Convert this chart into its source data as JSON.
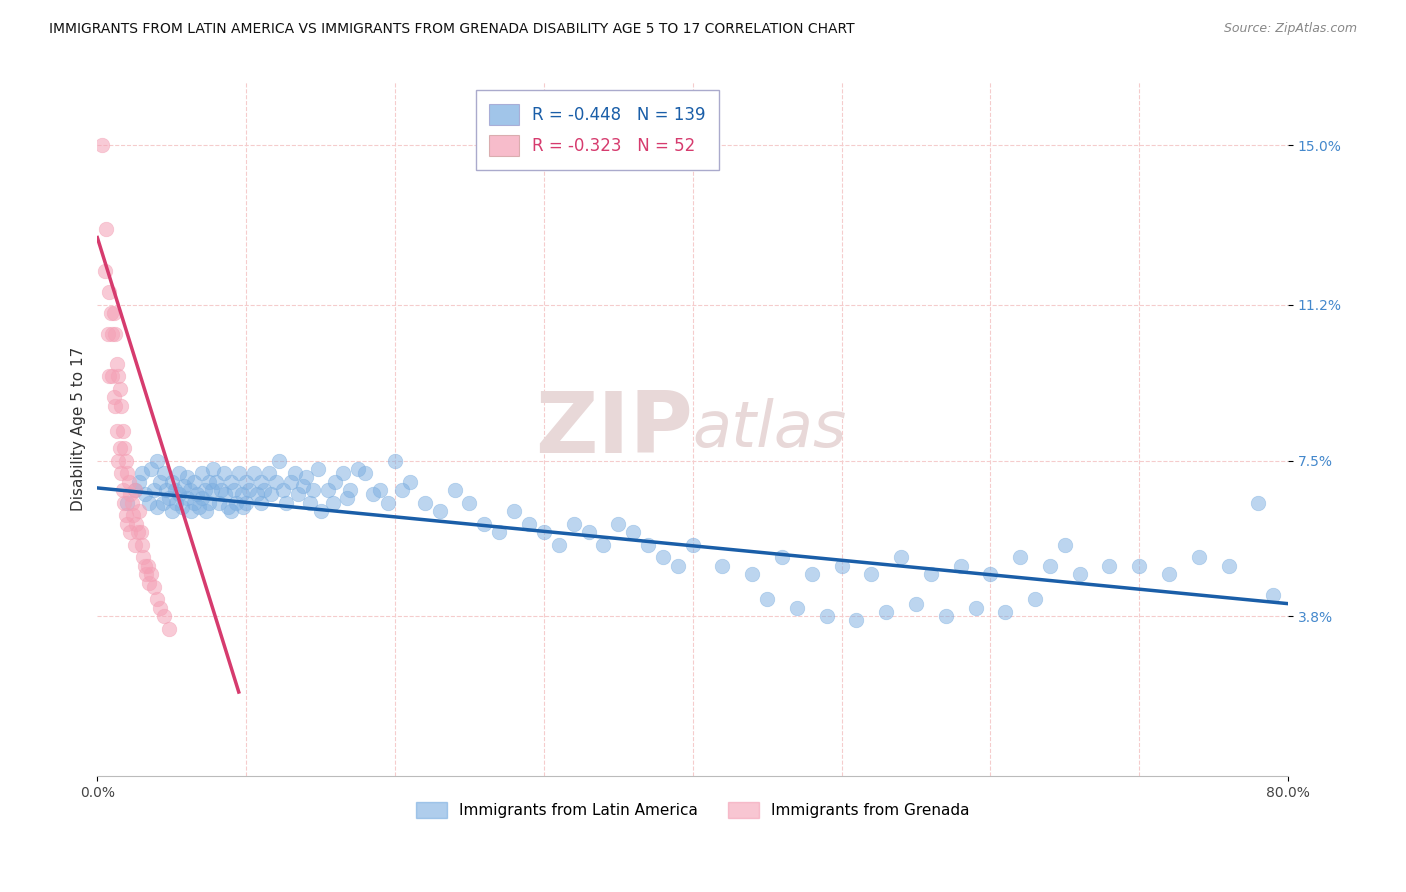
{
  "title": "IMMIGRANTS FROM LATIN AMERICA VS IMMIGRANTS FROM GRENADA DISABILITY AGE 5 TO 17 CORRELATION CHART",
  "source": "Source: ZipAtlas.com",
  "ylabel": "Disability Age 5 to 17",
  "xlim": [
    0,
    0.8
  ],
  "ylim": [
    0.0,
    0.165
  ],
  "yticks": [
    0.038,
    0.075,
    0.112,
    0.15
  ],
  "ytick_labels": [
    "3.8%",
    "7.5%",
    "11.2%",
    "15.0%"
  ],
  "legend_blue_r": "-0.448",
  "legend_blue_n": "139",
  "legend_pink_r": "-0.323",
  "legend_pink_n": "52",
  "legend_label_blue": "Immigrants from Latin America",
  "legend_label_pink": "Immigrants from Grenada",
  "blue_color": "#7AADE0",
  "pink_color": "#F4A0B5",
  "blue_line_color": "#1A5EA8",
  "pink_line_color": "#D63B6E",
  "background_color": "#FFFFFF",
  "grid_color": "#F5CCCC",
  "title_color": "#222222",
  "blue_scatter_x": [
    0.02,
    0.025,
    0.028,
    0.03,
    0.032,
    0.035,
    0.036,
    0.038,
    0.04,
    0.04,
    0.042,
    0.044,
    0.045,
    0.046,
    0.048,
    0.05,
    0.05,
    0.052,
    0.053,
    0.055,
    0.055,
    0.057,
    0.058,
    0.06,
    0.06,
    0.062,
    0.063,
    0.065,
    0.065,
    0.067,
    0.068,
    0.07,
    0.07,
    0.072,
    0.073,
    0.075,
    0.075,
    0.077,
    0.078,
    0.08,
    0.082,
    0.083,
    0.085,
    0.086,
    0.088,
    0.09,
    0.09,
    0.092,
    0.093,
    0.095,
    0.097,
    0.098,
    0.1,
    0.1,
    0.102,
    0.105,
    0.107,
    0.11,
    0.11,
    0.112,
    0.115,
    0.117,
    0.12,
    0.122,
    0.125,
    0.127,
    0.13,
    0.133,
    0.135,
    0.138,
    0.14,
    0.143,
    0.145,
    0.148,
    0.15,
    0.155,
    0.158,
    0.16,
    0.165,
    0.168,
    0.17,
    0.175,
    0.18,
    0.185,
    0.19,
    0.195,
    0.2,
    0.205,
    0.21,
    0.22,
    0.23,
    0.24,
    0.25,
    0.26,
    0.27,
    0.28,
    0.29,
    0.3,
    0.31,
    0.32,
    0.33,
    0.34,
    0.35,
    0.36,
    0.37,
    0.38,
    0.39,
    0.4,
    0.42,
    0.44,
    0.46,
    0.48,
    0.5,
    0.52,
    0.54,
    0.56,
    0.58,
    0.6,
    0.62,
    0.64,
    0.65,
    0.66,
    0.68,
    0.7,
    0.72,
    0.74,
    0.76,
    0.78,
    0.79,
    0.45,
    0.47,
    0.49,
    0.51,
    0.53,
    0.55,
    0.57,
    0.59,
    0.61,
    0.63
  ],
  "blue_scatter_y": [
    0.065,
    0.068,
    0.07,
    0.072,
    0.067,
    0.065,
    0.073,
    0.068,
    0.075,
    0.064,
    0.07,
    0.065,
    0.072,
    0.068,
    0.066,
    0.07,
    0.063,
    0.068,
    0.065,
    0.072,
    0.067,
    0.064,
    0.069,
    0.071,
    0.066,
    0.068,
    0.063,
    0.07,
    0.065,
    0.067,
    0.064,
    0.072,
    0.066,
    0.068,
    0.063,
    0.07,
    0.065,
    0.068,
    0.073,
    0.07,
    0.065,
    0.068,
    0.072,
    0.067,
    0.064,
    0.07,
    0.063,
    0.068,
    0.065,
    0.072,
    0.067,
    0.064,
    0.07,
    0.065,
    0.068,
    0.072,
    0.067,
    0.07,
    0.065,
    0.068,
    0.072,
    0.067,
    0.07,
    0.075,
    0.068,
    0.065,
    0.07,
    0.072,
    0.067,
    0.069,
    0.071,
    0.065,
    0.068,
    0.073,
    0.063,
    0.068,
    0.065,
    0.07,
    0.072,
    0.066,
    0.068,
    0.073,
    0.072,
    0.067,
    0.068,
    0.065,
    0.075,
    0.068,
    0.07,
    0.065,
    0.063,
    0.068,
    0.065,
    0.06,
    0.058,
    0.063,
    0.06,
    0.058,
    0.055,
    0.06,
    0.058,
    0.055,
    0.06,
    0.058,
    0.055,
    0.052,
    0.05,
    0.055,
    0.05,
    0.048,
    0.052,
    0.048,
    0.05,
    0.048,
    0.052,
    0.048,
    0.05,
    0.048,
    0.052,
    0.05,
    0.055,
    0.048,
    0.05,
    0.05,
    0.048,
    0.052,
    0.05,
    0.065,
    0.043,
    0.042,
    0.04,
    0.038,
    0.037,
    0.039,
    0.041,
    0.038,
    0.04,
    0.039,
    0.042
  ],
  "pink_scatter_x": [
    0.003,
    0.005,
    0.006,
    0.007,
    0.008,
    0.008,
    0.009,
    0.01,
    0.01,
    0.011,
    0.011,
    0.012,
    0.012,
    0.013,
    0.013,
    0.014,
    0.014,
    0.015,
    0.015,
    0.016,
    0.016,
    0.017,
    0.017,
    0.018,
    0.018,
    0.019,
    0.019,
    0.02,
    0.02,
    0.021,
    0.022,
    0.022,
    0.023,
    0.024,
    0.025,
    0.025,
    0.026,
    0.027,
    0.028,
    0.029,
    0.03,
    0.031,
    0.032,
    0.033,
    0.034,
    0.035,
    0.036,
    0.038,
    0.04,
    0.042,
    0.045,
    0.048
  ],
  "pink_scatter_y": [
    0.15,
    0.12,
    0.13,
    0.105,
    0.115,
    0.095,
    0.11,
    0.105,
    0.095,
    0.11,
    0.09,
    0.105,
    0.088,
    0.098,
    0.082,
    0.095,
    0.075,
    0.092,
    0.078,
    0.088,
    0.072,
    0.082,
    0.068,
    0.078,
    0.065,
    0.075,
    0.062,
    0.072,
    0.06,
    0.07,
    0.067,
    0.058,
    0.065,
    0.062,
    0.068,
    0.055,
    0.06,
    0.058,
    0.063,
    0.058,
    0.055,
    0.052,
    0.05,
    0.048,
    0.05,
    0.046,
    0.048,
    0.045,
    0.042,
    0.04,
    0.038,
    0.035
  ],
  "blue_trend_x": [
    0.0,
    0.8
  ],
  "blue_trend_y": [
    0.0685,
    0.041
  ],
  "pink_trend_x": [
    0.0,
    0.095
  ],
  "pink_trend_y": [
    0.128,
    0.02
  ],
  "watermark_zip": "ZIP",
  "watermark_atlas": "atlas",
  "watermark_color": "#E8D8D8"
}
